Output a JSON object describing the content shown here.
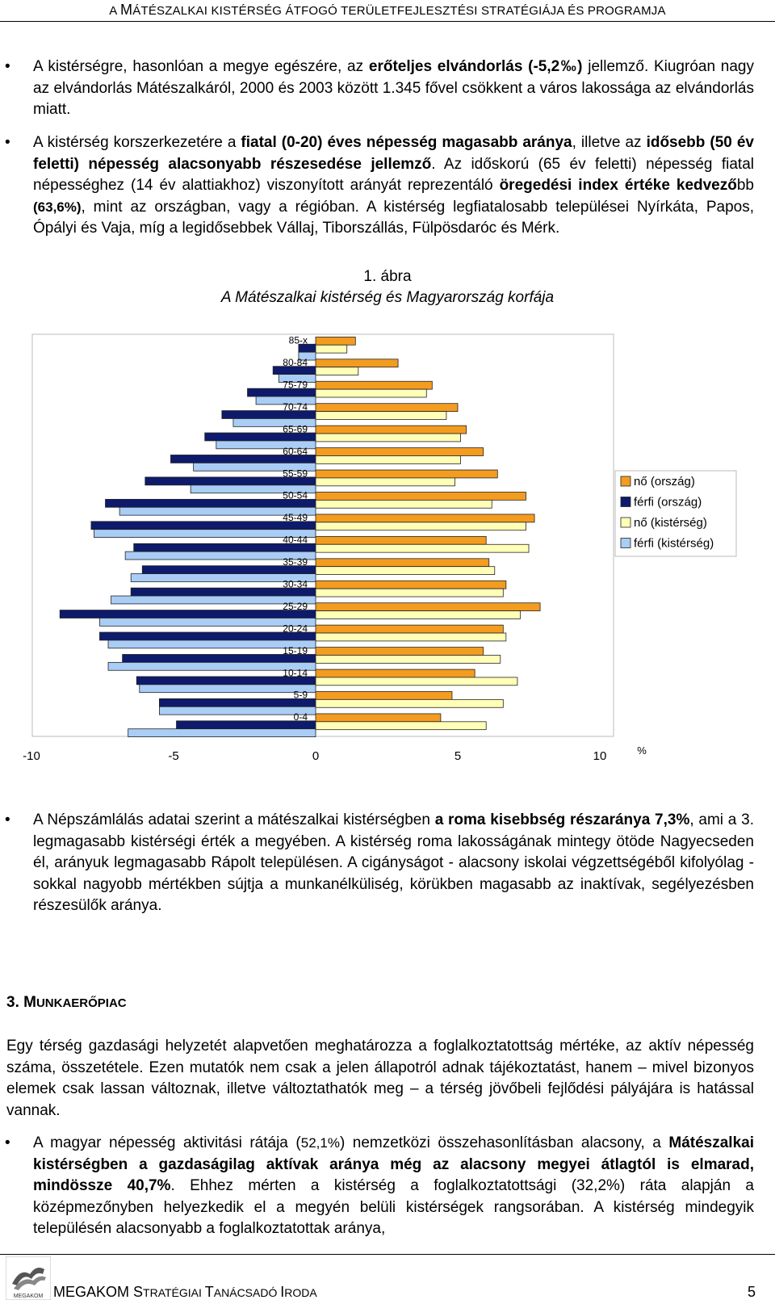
{
  "header": {
    "title_first": "A ",
    "title_cap": "M",
    "title_rest": "ÁTÉSZALKAI KISTÉRSÉG ÁTFOGÓ TERÜLETFEJLESZTÉSI STRATÉGIÁJA ÉS PROGRAMJA"
  },
  "bullets_top": [
    {
      "parts": [
        "A kistérségre, hasonlóan a megye egészére, az ",
        "erőteljes elvándorlás (-5,2‰)",
        " jellemző. Kiugróan nagy az elvándorlás Mátészalkáról, 2000 és 2003 között 1.345 fővel csökkent a város lakossága az elvándorlás miatt."
      ]
    },
    {
      "parts": [
        "A kistérség korszerkezetére a ",
        "fiatal (0-20) éves népesség magasabb aránya",
        ", illetve az ",
        "idősebb (50 év feletti) népesség alacsonyabb részesedése jellemző",
        ". Az időskorú (65 év feletti) népesség fiatal népességhez (14 év alattiakhoz) viszonyított arányát reprezentáló ",
        "öregedési index értéke kedvező",
        "bb ",
        "(63,6%)",
        ", mint az országban, vagy a régióban. A kistérség legfiatalosabb települései Nyírkáta, Papos, Ópályi és Vaja, míg a legidősebbek Vállaj, Tiborszállás, Fülpösdaróc és Mérk."
      ]
    }
  ],
  "figure": {
    "number": "1. ábra",
    "title": "A Mátészalkai kistérség és Magyarország korfája"
  },
  "chart_data": {
    "type": "bar",
    "orientation": "horizontal",
    "categories": [
      "85-x",
      "80-84",
      "75-79",
      "70-74",
      "65-69",
      "60-64",
      "55-59",
      "50-54",
      "45-49",
      "40-44",
      "35-39",
      "30-34",
      "25-29",
      "20-24",
      "15-19",
      "10-14",
      "5-9",
      "0-4"
    ],
    "series": [
      {
        "name": "nő (ország)",
        "color": "#f39c1f",
        "values": [
          1.4,
          2.9,
          4.1,
          5.0,
          5.3,
          5.9,
          6.4,
          7.4,
          7.7,
          6.0,
          6.1,
          6.7,
          7.9,
          6.6,
          5.9,
          5.6,
          4.8,
          4.4
        ]
      },
      {
        "name": "férfi (ország)",
        "color": "#0e1a6b",
        "values": [
          -0.6,
          -1.5,
          -2.4,
          -3.3,
          -3.9,
          -5.1,
          -6.0,
          -7.4,
          -7.9,
          -6.4,
          -6.1,
          -6.5,
          -9.0,
          -7.6,
          -6.8,
          -6.3,
          -5.5,
          -4.9
        ]
      },
      {
        "name": "nő (kistérség)",
        "color": "#ffffb8",
        "values": [
          1.1,
          1.5,
          3.9,
          4.6,
          5.1,
          5.1,
          4.9,
          6.2,
          7.4,
          7.5,
          6.3,
          6.6,
          7.2,
          6.7,
          6.5,
          7.1,
          6.6,
          6.0
        ]
      },
      {
        "name": "férfi (kistérség)",
        "color": "#a9cdf5",
        "values": [
          -0.6,
          -1.3,
          -2.1,
          -2.9,
          -3.5,
          -4.3,
          -4.4,
          -6.9,
          -7.8,
          -6.7,
          -6.5,
          -7.2,
          -7.6,
          -7.3,
          -7.3,
          -6.2,
          -5.5,
          -6.6
        ]
      }
    ],
    "xlim": [
      -10,
      10
    ],
    "xticks": [
      "-10",
      "-5",
      "0",
      "5",
      "10"
    ],
    "unit_label": "%",
    "legend_position": "right"
  },
  "bullets_mid": [
    {
      "parts": [
        "A Népszámlálás adatai szerint a mátészalkai kistérségben ",
        "a roma kisebbség részaránya 7,3%",
        ", ami a 3. legmagasabb kistérségi érték a megyében. A kistérség roma lakosságának mintegy ötöde Nagyecseden él, arányuk legmagasabb Rápolt településen. A cigányságot - alacsony iskolai végzettségéből kifolyólag - sokkal nagyobb mértékben sújtja a munkanélküliség, körükben magasabb az inaktívak, segélyezésben részesülők aránya."
      ]
    }
  ],
  "section": {
    "number": "3. ",
    "cap": "M",
    "rest": "UNKAERŐPIAC"
  },
  "section_para": "Egy térség gazdasági helyzetét alapvetően meghatározza a foglalkoztatottság mértéke, az aktív népesség száma, összetétele. Ezen mutatók nem csak a jelen állapotról adnak tájékoztatást, hanem – mivel bizonyos elemek csak lassan változnak, illetve változtathatók meg – a térség jövőbeli fejlődési pályájára is hatással vannak.",
  "bullets_bottom": [
    {
      "parts": [
        "A magyar népesség aktivitási rátája (",
        "52,1%",
        ") nemzetközi összehasonlításban alacsony, a ",
        "Mátészalkai kistérségben a gazdaságilag aktívak aránya még az alacsony megyei átlagtól is elmarad, mindössze 40,7%",
        ". Ehhez mérten a kistérség a foglalkoztatottsági (32,2%) ráta alapján a középmezőnyben helyezkedik el a megyén belüli kistérségek rangsorában. A kistérség mindegyik településén alacsonyabb a foglalkoztatottak aránya,"
      ]
    }
  ],
  "footer": {
    "logo_text": "MEGAKOM",
    "f1": "MEGAKOM ",
    "f2": "S",
    "f3": "TRATÉGIAI ",
    "f4": "T",
    "f5": "ANÁCSADÓ ",
    "f6": "I",
    "f7": "RODA",
    "page": "5"
  }
}
